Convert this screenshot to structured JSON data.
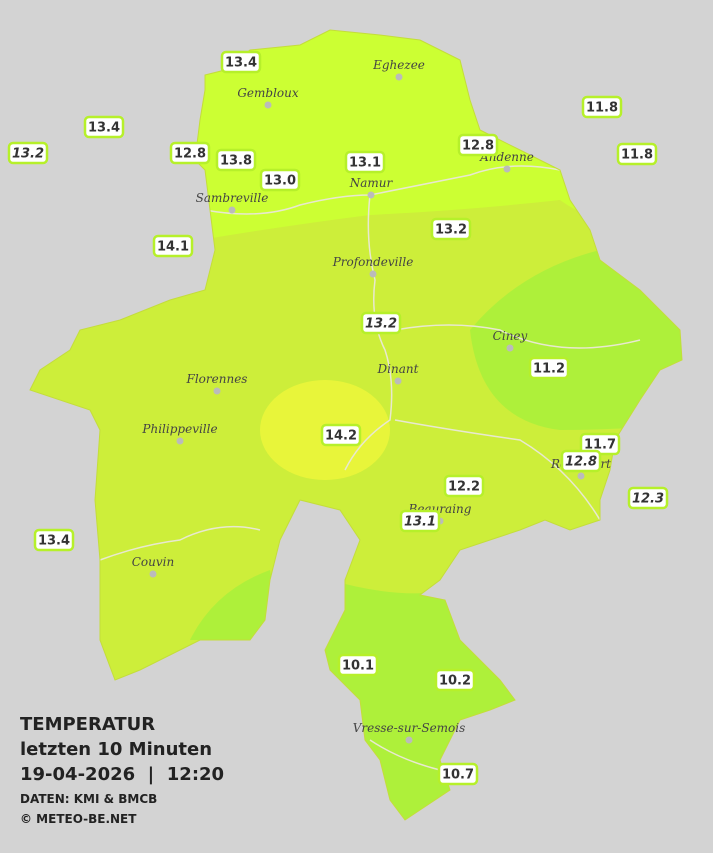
{
  "stations": [
    "13.4",
    "13.4",
    "13.2",
    "12.8",
    "13.8",
    "13.0",
    "13.1",
    "12.8",
    "11.8",
    "11.8",
    "14.1",
    "13.2",
    "13.2",
    "11.2",
    "14.2",
    "11.7",
    "12.8",
    "12.3",
    "12.2",
    "13.1",
    "13.4",
    "10.1",
    "10.2",
    "10.7"
  ],
  "towns": [
    "Eghezee",
    "Gembloux",
    "Andenne",
    "Namur",
    "Sambreville",
    "Profondeville",
    "Ciney",
    "Dinant",
    "Florennes",
    "Philippeville",
    "Couvin",
    "Vresse-sur-Semois",
    "Beauraing",
    "Rochefort"
  ],
  "legend": {
    "title": "TEMPERATUR",
    "subtitle": "letzten 10 Minuten",
    "datetime": "19-04-2026  |  12:20",
    "source": "DATEN: KMI & BMCB",
    "copyright": "© METEO-BE.NET"
  }
}
